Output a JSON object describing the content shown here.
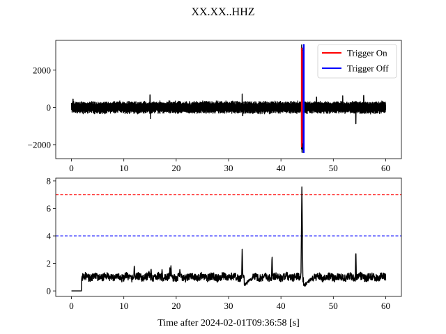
{
  "figure": {
    "title": "XX.XX..HHZ"
  },
  "chart_data": [
    {
      "type": "line",
      "panel": "waveform",
      "xlim": [
        -3,
        63
      ],
      "ylim": [
        -2750,
        3600
      ],
      "x_ticks": [
        0,
        10,
        20,
        30,
        40,
        50,
        60
      ],
      "y_ticks": [
        -2000,
        0,
        2000
      ],
      "y_tick_labels": [
        "−2000",
        "0",
        "2000"
      ],
      "noise_band": [
        -300,
        300
      ],
      "spikes": [
        {
          "x": 0.3,
          "y": 450
        },
        {
          "x": 15.0,
          "y": 680
        },
        {
          "x": 15.1,
          "y": -600
        },
        {
          "x": 32.6,
          "y": 720
        },
        {
          "x": 32.7,
          "y": -450
        },
        {
          "x": 46.8,
          "y": 560
        },
        {
          "x": 51.8,
          "y": 620
        },
        {
          "x": 54.3,
          "y": -870
        },
        {
          "x": 55.8,
          "y": 640
        }
      ],
      "event": {
        "start": 43.9,
        "end": 44.4,
        "max": 3400,
        "min": -2450
      },
      "trigger_on": {
        "x": 43.95,
        "ymin": -2150,
        "ymax": 3200,
        "color": "#ff0000"
      },
      "trigger_off": {
        "x": 44.35,
        "ymin": -2450,
        "ymax": 3400,
        "color": "#0000ff"
      },
      "legend": {
        "placement": "upper-right",
        "entries": [
          {
            "label": "Trigger On",
            "color": "#ff0000"
          },
          {
            "label": "Trigger Off",
            "color": "#0000ff"
          }
        ]
      }
    },
    {
      "type": "line",
      "panel": "characteristic",
      "xlabel": "Time after 2024-02-01T09:36:58 [s]",
      "xlim": [
        -3,
        63
      ],
      "ylim": [
        -0.4,
        8.2
      ],
      "x_ticks": [
        0,
        10,
        20,
        30,
        40,
        50,
        60
      ],
      "y_ticks": [
        0,
        2,
        4,
        6,
        8
      ],
      "thresholds": [
        {
          "y": 7,
          "color": "#ff0000",
          "style": "dashed"
        },
        {
          "y": 4,
          "color": "#0000ff",
          "style": "dashed"
        }
      ],
      "segments": [
        [
          0,
          0
        ],
        [
          1.9,
          0
        ],
        [
          1.95,
          0.85
        ]
      ],
      "baseline": 1.0,
      "peaks": [
        {
          "x": 12.0,
          "y": 1.95
        },
        {
          "x": 14.8,
          "y": 1.45
        },
        {
          "x": 15.2,
          "y": 1.7
        },
        {
          "x": 17.3,
          "y": 1.6
        },
        {
          "x": 18.8,
          "y": 1.8
        },
        {
          "x": 19.0,
          "y": 1.9
        },
        {
          "x": 20.7,
          "y": 1.6
        },
        {
          "x": 32.6,
          "y": 3.2
        },
        {
          "x": 38.3,
          "y": 2.7
        },
        {
          "x": 44.0,
          "y": 7.75
        },
        {
          "x": 54.3,
          "y": 3.1
        }
      ],
      "dips": [
        {
          "x": 33.0,
          "x2": 34.6,
          "y": 0.45
        },
        {
          "x": 44.3,
          "x2": 46.0,
          "y": 0.35
        }
      ]
    }
  ]
}
